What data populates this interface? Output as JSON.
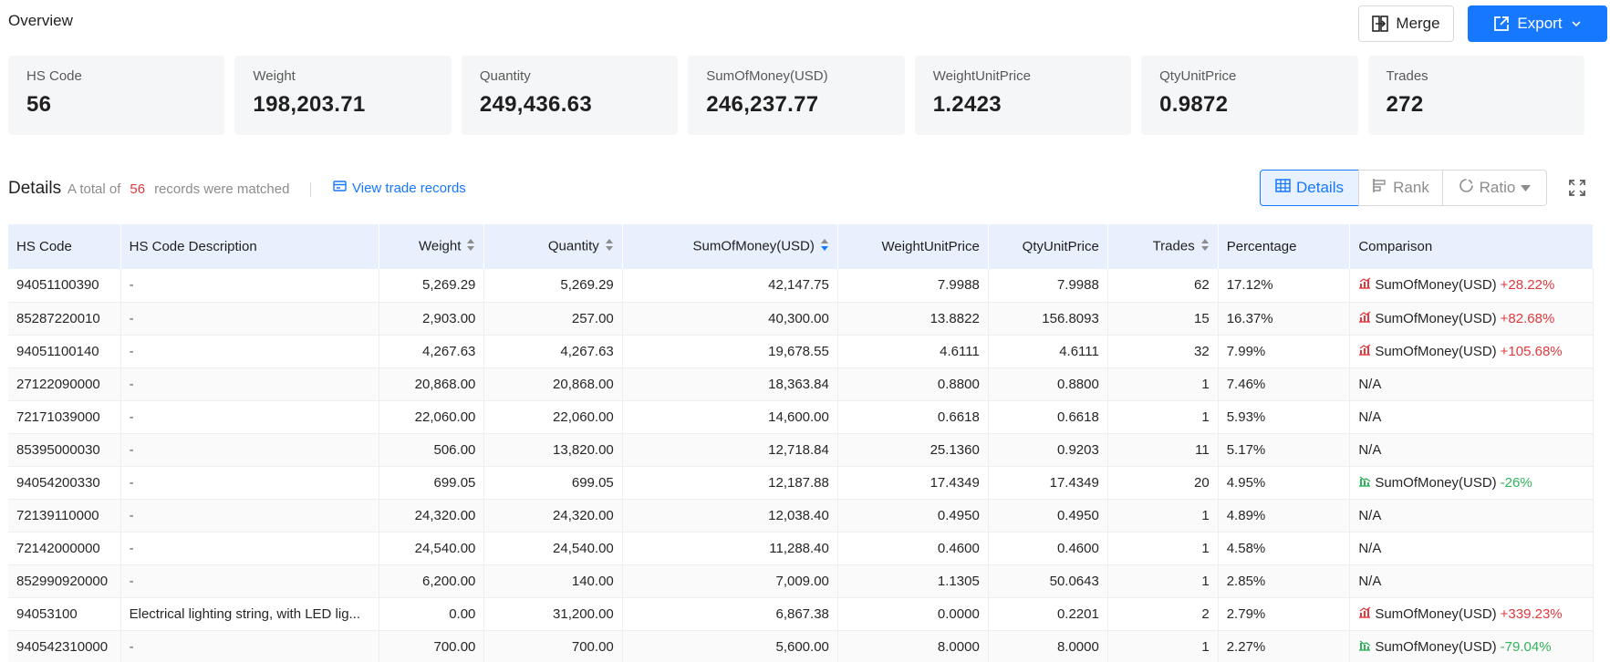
{
  "header": {
    "title": "Overview",
    "merge_label": "Merge",
    "export_label": "Export"
  },
  "cards": [
    {
      "label": "HS Code",
      "value": "56"
    },
    {
      "label": "Weight",
      "value": "198,203.71"
    },
    {
      "label": "Quantity",
      "value": "249,436.63"
    },
    {
      "label": "SumOfMoney(USD)",
      "value": "246,237.77"
    },
    {
      "label": "WeightUnitPrice",
      "value": "1.2423"
    },
    {
      "label": "QtyUnitPrice",
      "value": "0.9872"
    },
    {
      "label": "Trades",
      "value": "272"
    }
  ],
  "details": {
    "title": "Details",
    "meta_prefix": "A total of",
    "count": "56",
    "meta_suffix": "records were matched",
    "view_link": "View trade records"
  },
  "view_switch": {
    "details": "Details",
    "rank": "Rank",
    "ratio": "Ratio"
  },
  "colors": {
    "accent": "#1677ff",
    "increase": "#e0393e",
    "decrease": "#30b35a",
    "header_bg": "#e8effd"
  },
  "table": {
    "columns": [
      "HS Code",
      "HS Code Description",
      "Weight",
      "Quantity",
      "SumOfMoney(USD)",
      "WeightUnitPrice",
      "QtyUnitPrice",
      "Trades",
      "Percentage",
      "Comparison"
    ],
    "rows": [
      {
        "code": "94051100390",
        "desc": "-",
        "weight": "5,269.29",
        "qty": "5,269.29",
        "sum": "42,147.75",
        "wup": "7.9988",
        "qup": "7.9988",
        "trades": "62",
        "pct": "17.12%",
        "cmp_label": "SumOfMoney(USD)",
        "cmp_delta": "+28.22%",
        "cmp_dir": "up"
      },
      {
        "code": "85287220010",
        "desc": "-",
        "weight": "2,903.00",
        "qty": "257.00",
        "sum": "40,300.00",
        "wup": "13.8822",
        "qup": "156.8093",
        "trades": "15",
        "pct": "16.37%",
        "cmp_label": "SumOfMoney(USD)",
        "cmp_delta": "+82.68%",
        "cmp_dir": "up"
      },
      {
        "code": "94051100140",
        "desc": "-",
        "weight": "4,267.63",
        "qty": "4,267.63",
        "sum": "19,678.55",
        "wup": "4.6111",
        "qup": "4.6111",
        "trades": "32",
        "pct": "7.99%",
        "cmp_label": "SumOfMoney(USD)",
        "cmp_delta": "+105.68%",
        "cmp_dir": "up"
      },
      {
        "code": "27122090000",
        "desc": "-",
        "weight": "20,868.00",
        "qty": "20,868.00",
        "sum": "18,363.84",
        "wup": "0.8800",
        "qup": "0.8800",
        "trades": "1",
        "pct": "7.46%",
        "cmp_label": "N/A",
        "cmp_delta": "",
        "cmp_dir": "none"
      },
      {
        "code": "72171039000",
        "desc": "-",
        "weight": "22,060.00",
        "qty": "22,060.00",
        "sum": "14,600.00",
        "wup": "0.6618",
        "qup": "0.6618",
        "trades": "1",
        "pct": "5.93%",
        "cmp_label": "N/A",
        "cmp_delta": "",
        "cmp_dir": "none"
      },
      {
        "code": "85395000030",
        "desc": "-",
        "weight": "506.00",
        "qty": "13,820.00",
        "sum": "12,718.84",
        "wup": "25.1360",
        "qup": "0.9203",
        "trades": "11",
        "pct": "5.17%",
        "cmp_label": "N/A",
        "cmp_delta": "",
        "cmp_dir": "none"
      },
      {
        "code": "94054200330",
        "desc": "-",
        "weight": "699.05",
        "qty": "699.05",
        "sum": "12,187.88",
        "wup": "17.4349",
        "qup": "17.4349",
        "trades": "20",
        "pct": "4.95%",
        "cmp_label": "SumOfMoney(USD)",
        "cmp_delta": "-26%",
        "cmp_dir": "down"
      },
      {
        "code": "72139110000",
        "desc": "-",
        "weight": "24,320.00",
        "qty": "24,320.00",
        "sum": "12,038.40",
        "wup": "0.4950",
        "qup": "0.4950",
        "trades": "1",
        "pct": "4.89%",
        "cmp_label": "N/A",
        "cmp_delta": "",
        "cmp_dir": "none"
      },
      {
        "code": "72142000000",
        "desc": "-",
        "weight": "24,540.00",
        "qty": "24,540.00",
        "sum": "11,288.40",
        "wup": "0.4600",
        "qup": "0.4600",
        "trades": "1",
        "pct": "4.58%",
        "cmp_label": "N/A",
        "cmp_delta": "",
        "cmp_dir": "none"
      },
      {
        "code": "852990920000",
        "desc": "-",
        "weight": "6,200.00",
        "qty": "140.00",
        "sum": "7,009.00",
        "wup": "1.1305",
        "qup": "50.0643",
        "trades": "1",
        "pct": "2.85%",
        "cmp_label": "N/A",
        "cmp_delta": "",
        "cmp_dir": "none"
      },
      {
        "code": "94053100",
        "desc": "Electrical lighting string, with LED lig...",
        "weight": "0.00",
        "qty": "31,200.00",
        "sum": "6,867.38",
        "wup": "0.0000",
        "qup": "0.2201",
        "trades": "2",
        "pct": "2.79%",
        "cmp_label": "SumOfMoney(USD)",
        "cmp_delta": "+339.23%",
        "cmp_dir": "up"
      },
      {
        "code": "940542310000",
        "desc": "-",
        "weight": "700.00",
        "qty": "700.00",
        "sum": "5,600.00",
        "wup": "8.0000",
        "qup": "8.0000",
        "trades": "1",
        "pct": "2.27%",
        "cmp_label": "SumOfMoney(USD)",
        "cmp_delta": "-79.04%",
        "cmp_dir": "down"
      }
    ]
  }
}
